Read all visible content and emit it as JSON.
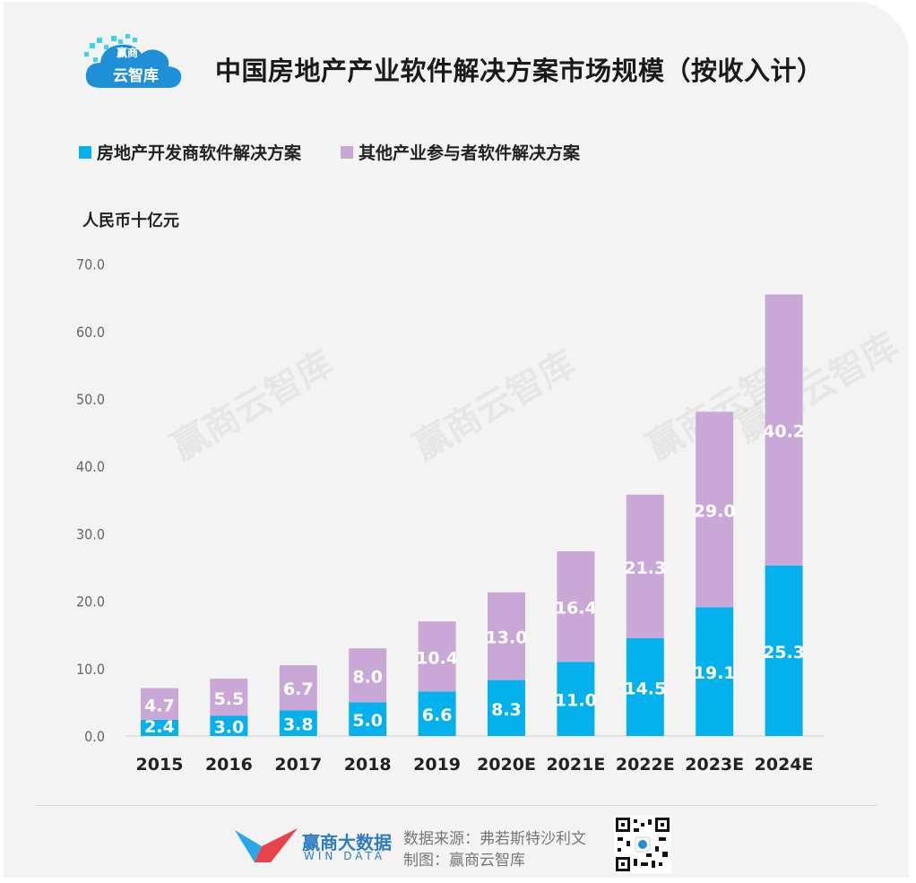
{
  "brand": {
    "logo_top": "赢商",
    "logo_bottom": "云智库",
    "footer_name": "赢商大数据",
    "footer_sub": "WIN DATA"
  },
  "footer": {
    "source": "数据来源：弗若斯特沙利文",
    "maker": "制图：赢商云智库"
  },
  "watermarks": [
    "赢商云智库",
    "赢商云智库",
    "赢商云智库",
    "赢商云智库"
  ],
  "colors": {
    "developer": "#04b1ed",
    "other": "#c9a8d8",
    "label": "#ffffff"
  },
  "chart_data": {
    "type": "bar",
    "stacked": true,
    "title": "中国房地产产业软件解决方案市场规模（按收入计）",
    "ylabel": "人民币十亿元",
    "ylim": [
      0,
      70
    ],
    "yticks": [
      "0.0",
      "10.0",
      "20.0",
      "30.0",
      "40.0",
      "50.0",
      "60.0",
      "70.0"
    ],
    "categories": [
      "2015",
      "2016",
      "2017",
      "2018",
      "2019",
      "2020E",
      "2021E",
      "2022E",
      "2023E",
      "2024E"
    ],
    "series": [
      {
        "name": "房地产开发商软件解决方案",
        "values": [
          2.4,
          3.0,
          3.8,
          5.0,
          6.6,
          8.3,
          11.0,
          14.5,
          19.1,
          25.3
        ],
        "labels": [
          "2.4",
          "3.0",
          "3.8",
          "5.0",
          "6.6",
          "8.3",
          "11.0",
          "14.5",
          "19.1",
          "25.3"
        ]
      },
      {
        "name": "其他产业参与者软件解决方案",
        "values": [
          4.7,
          5.5,
          6.7,
          8.0,
          10.4,
          13.0,
          16.4,
          21.3,
          29.0,
          40.2
        ],
        "labels": [
          "4.7",
          "5.5",
          "6.7",
          "8.0",
          "10.4",
          "13.0",
          "16.4",
          "21.3",
          "29.0",
          "40.2"
        ]
      }
    ],
    "legend": "top-left",
    "grid": false
  }
}
